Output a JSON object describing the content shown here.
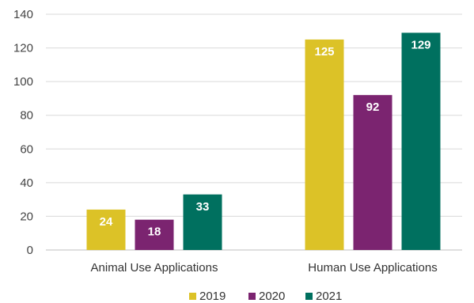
{
  "chart_data": {
    "type": "bar",
    "title": "",
    "xlabel": "",
    "ylabel": "",
    "categories": [
      "Animal Use Applications",
      "Human Use Applications"
    ],
    "series": [
      {
        "name": "2019",
        "color": "#dcc227",
        "values": [
          24,
          125
        ]
      },
      {
        "name": "2020",
        "color": "#7b2470",
        "values": [
          18,
          92
        ]
      },
      {
        "name": "2021",
        "color": "#00705f",
        "values": [
          33,
          129
        ]
      }
    ],
    "ylim": [
      0,
      140
    ],
    "yticks": [
      0,
      20,
      40,
      60,
      80,
      100,
      120,
      140
    ],
    "grid": true,
    "legend": "bottom-center"
  }
}
